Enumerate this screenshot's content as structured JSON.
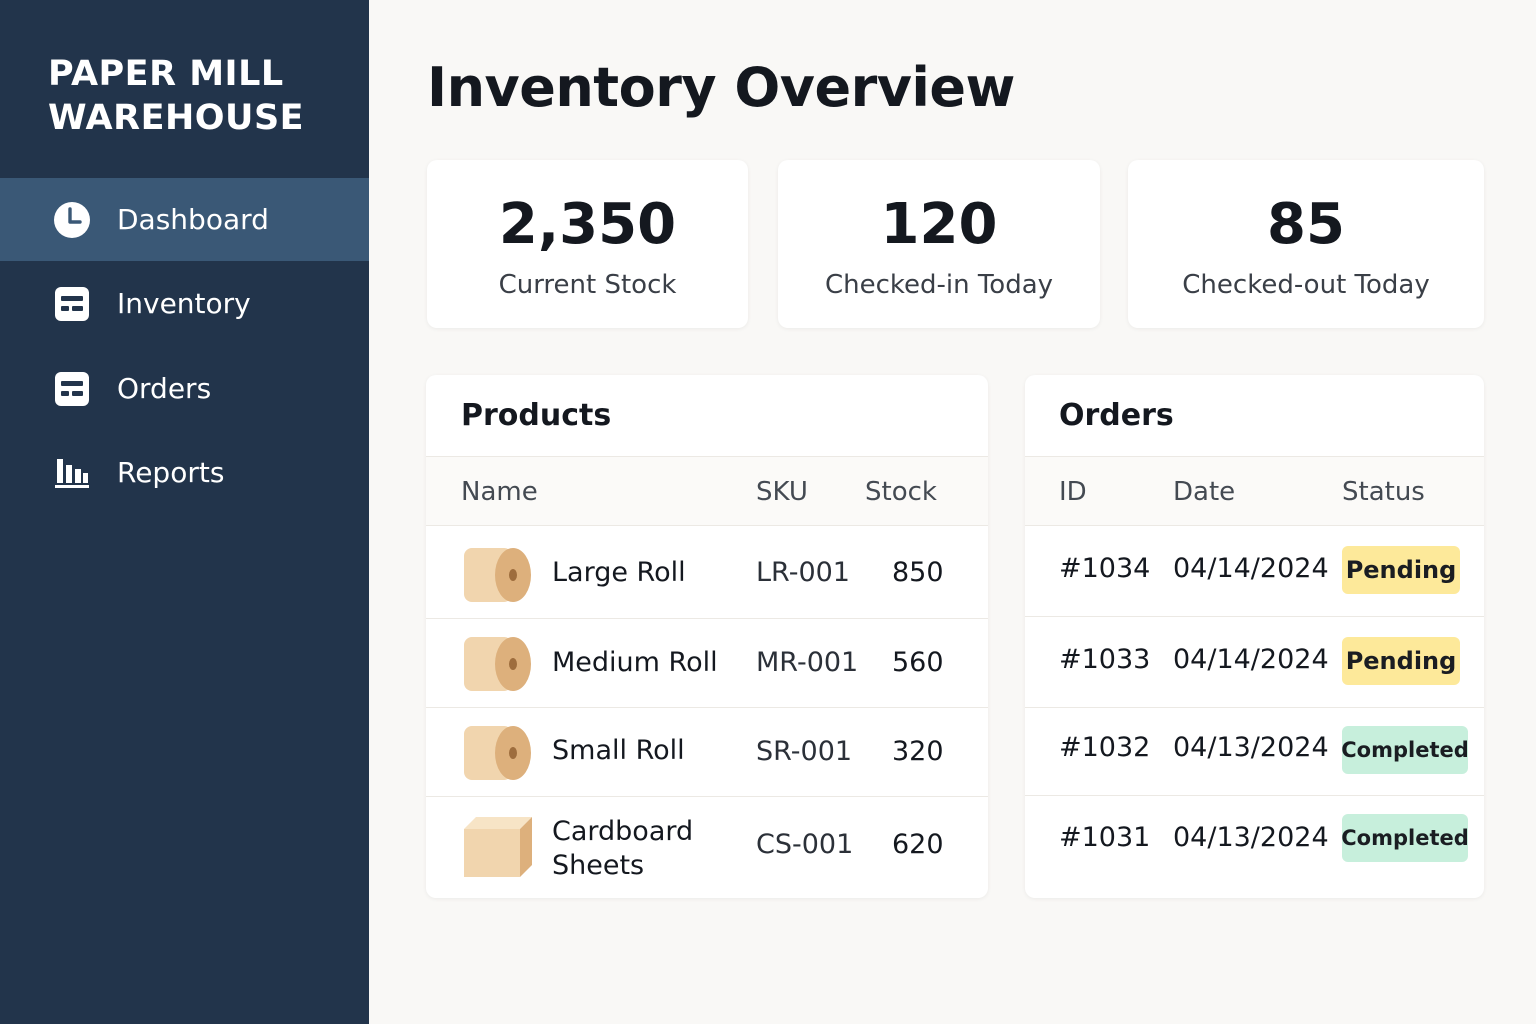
{
  "app": {
    "brand_line1": "PAPER MILL",
    "brand_line2": "WAREHOUSE"
  },
  "sidebar": {
    "items": [
      {
        "label": "Dashboard",
        "icon": "clock-icon",
        "active": true
      },
      {
        "label": "Inventory",
        "icon": "list-box-icon",
        "active": false
      },
      {
        "label": "Orders",
        "icon": "list-box-icon",
        "active": false
      },
      {
        "label": "Reports",
        "icon": "bar-chart-icon",
        "active": false
      }
    ]
  },
  "main": {
    "title": "Inventory Overview",
    "stats": [
      {
        "value": "2,350",
        "label": "Current Stock"
      },
      {
        "value": "120",
        "label": "Checked-in Today"
      },
      {
        "value": "85",
        "label": "Checked-out Today"
      }
    ],
    "products": {
      "title": "Products",
      "columns": [
        "Name",
        "SKU",
        "Stock"
      ],
      "rows": [
        {
          "name": "Large Roll",
          "sku": "LR-001",
          "stock": "850",
          "icon": "paper-roll-icon"
        },
        {
          "name": "Medium Roll",
          "sku": "MR-001",
          "stock": "560",
          "icon": "paper-roll-icon"
        },
        {
          "name": "Small Roll",
          "sku": "SR-001",
          "stock": "320",
          "icon": "paper-roll-icon"
        },
        {
          "name_line1": "Cardboard",
          "name_line2": "Sheets",
          "sku": "CS-001",
          "stock": "620",
          "icon": "cardboard-box-icon"
        }
      ]
    },
    "orders": {
      "title": "Orders",
      "columns": [
        "ID",
        "Date",
        "Status"
      ],
      "rows": [
        {
          "id": "#1034",
          "date": "04/14/2024",
          "status": "Pending"
        },
        {
          "id": "#1033",
          "date": "04/14/2024",
          "status": "Pending"
        },
        {
          "id": "#1032",
          "date": "04/13/2024",
          "status": "Completed"
        },
        {
          "id": "#1031",
          "date": "04/13/2024",
          "status": "Completed"
        }
      ]
    }
  },
  "colors": {
    "sidebar_bg": "#22344b",
    "sidebar_active": "#3a5876",
    "pending": "#fde99a",
    "completed": "#c7efdc"
  }
}
